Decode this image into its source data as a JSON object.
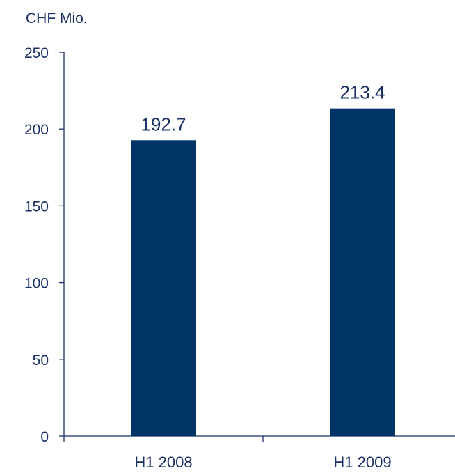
{
  "chart_data": {
    "type": "bar",
    "unit_label": "CHF Mio.",
    "categories": [
      "H1 2008",
      "H1 2009"
    ],
    "values": [
      192.7,
      213.4
    ],
    "value_labels": [
      "192.7",
      "213.4"
    ],
    "ylim": [
      0,
      250
    ],
    "yticks": [
      0,
      50,
      100,
      150,
      200,
      250
    ],
    "ytick_labels": [
      "0",
      "50",
      "100",
      "150",
      "200",
      "250"
    ],
    "grid": false,
    "legend": "none"
  },
  "colors": {
    "bar": "#003366",
    "text": "#1a2f66",
    "axis": "#1a2f66"
  }
}
